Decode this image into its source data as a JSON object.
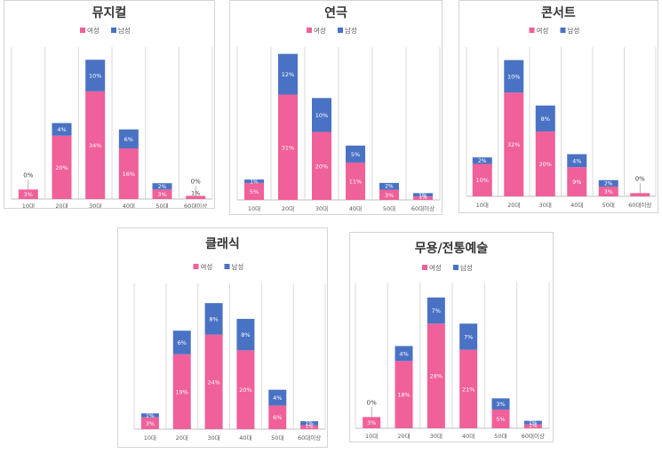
{
  "colors": {
    "female": "#f0609a",
    "male": "#4a72c4",
    "grid": "#d9d9d9"
  },
  "legend": {
    "female": "여성",
    "male": "남성"
  },
  "chart_data": [
    {
      "type": "bar",
      "stacked": true,
      "title": "뮤지컬",
      "unit": "%",
      "categories": [
        "10대",
        "20대",
        "30대",
        "40대",
        "50대",
        "60대이상"
      ],
      "series": [
        {
          "name": "여성",
          "values": [
            3,
            20,
            34,
            16,
            3,
            1
          ],
          "labels": [
            "3%",
            "20%",
            "34%",
            "16%",
            "3%",
            ""
          ]
        },
        {
          "name": "남성",
          "values": [
            0,
            4,
            10,
            6,
            2,
            0
          ],
          "labels": [
            "0%",
            "4%",
            "10%",
            "6%",
            "2%",
            "0%"
          ]
        }
      ],
      "extra_labels": [
        "",
        "",
        "",
        "",
        "",
        "1%"
      ],
      "ylim": [
        0,
        48
      ]
    },
    {
      "type": "bar",
      "stacked": true,
      "title": "연극",
      "unit": "%",
      "categories": [
        "10대",
        "20대",
        "30대",
        "40대",
        "50대",
        "60대이상"
      ],
      "series": [
        {
          "name": "여성",
          "values": [
            5,
            31,
            20,
            11,
            3,
            1
          ],
          "labels": [
            "5%",
            "31%",
            "20%",
            "11%",
            "3%",
            "1%"
          ]
        },
        {
          "name": "남성",
          "values": [
            1,
            12,
            10,
            5,
            2,
            1
          ],
          "labels": [
            "1%",
            "12%",
            "10%",
            "5%",
            "2%",
            "1%"
          ]
        }
      ],
      "ylim": [
        0,
        45
      ]
    },
    {
      "type": "bar",
      "stacked": true,
      "title": "콘서트",
      "unit": "%",
      "categories": [
        "10대",
        "20대",
        "30대",
        "40대",
        "50대",
        "60대이상"
      ],
      "series": [
        {
          "name": "여성",
          "values": [
            10,
            32,
            20,
            9,
            3,
            1
          ],
          "labels": [
            "10%",
            "32%",
            "20%",
            "9%",
            "3%",
            ""
          ]
        },
        {
          "name": "남성",
          "values": [
            2,
            10,
            8,
            4,
            2,
            0
          ],
          "labels": [
            "2%",
            "10%",
            "8%",
            "4%",
            "2%",
            "0%"
          ]
        }
      ],
      "ylim": [
        0,
        46
      ]
    },
    {
      "type": "bar",
      "stacked": true,
      "title": "클래식",
      "unit": "%",
      "categories": [
        "10대",
        "20대",
        "30대",
        "40대",
        "50대",
        "60대이상"
      ],
      "series": [
        {
          "name": "여성",
          "values": [
            3,
            19,
            24,
            20,
            6,
            1
          ],
          "labels": [
            "3%",
            "19%",
            "24%",
            "20%",
            "6%",
            "1%"
          ]
        },
        {
          "name": "남성",
          "values": [
            1,
            6,
            8,
            8,
            4,
            1
          ],
          "labels": [
            "1%",
            "6%",
            "8%",
            "8%",
            "4%",
            "1%"
          ]
        }
      ],
      "ylim": [
        0,
        37
      ]
    },
    {
      "type": "bar",
      "stacked": true,
      "title": "무용/전통예술",
      "unit": "%",
      "categories": [
        "10대",
        "20대",
        "30대",
        "40대",
        "50대",
        "60대이상"
      ],
      "series": [
        {
          "name": "여성",
          "values": [
            3,
            18,
            28,
            21,
            5,
            1
          ],
          "labels": [
            "3%",
            "18%",
            "28%",
            "21%",
            "5%",
            "1%"
          ]
        },
        {
          "name": "남성",
          "values": [
            0,
            4,
            7,
            7,
            3,
            1
          ],
          "labels": [
            "0%",
            "4%",
            "7%",
            "7%",
            "3%",
            "1%"
          ]
        }
      ],
      "ylim": [
        0,
        39
      ]
    }
  ]
}
